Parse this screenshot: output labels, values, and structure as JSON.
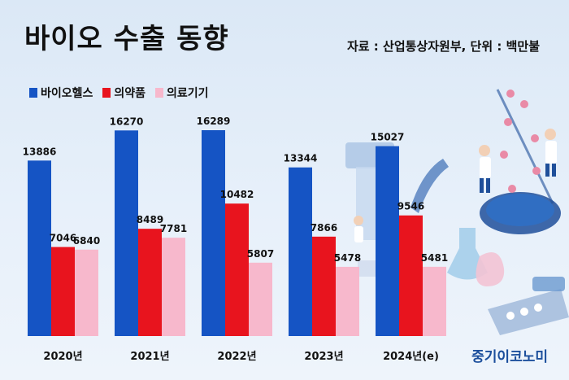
{
  "header": {
    "title": "바이오 수출 동향",
    "source": "자료 : 산업통상자원부, 단위 : 백만불"
  },
  "brand": "중기이코노미",
  "chart_data": {
    "type": "bar",
    "categories": [
      "2020년",
      "2021년",
      "2022년",
      "2023년",
      "2024년(e)"
    ],
    "series": [
      {
        "name": "바이오헬스",
        "color": "#1554c4",
        "values": [
          13886,
          16270,
          16289,
          13344,
          15027
        ]
      },
      {
        "name": "의약품",
        "color": "#e8141e",
        "values": [
          7046,
          8489,
          10482,
          7866,
          9546
        ]
      },
      {
        "name": "의료기기",
        "color": "#f7b8cc",
        "values": [
          6840,
          7781,
          5807,
          5478,
          5481
        ]
      }
    ],
    "ylim": [
      0,
      16289
    ],
    "grid": false,
    "legend_position": "top-left"
  }
}
